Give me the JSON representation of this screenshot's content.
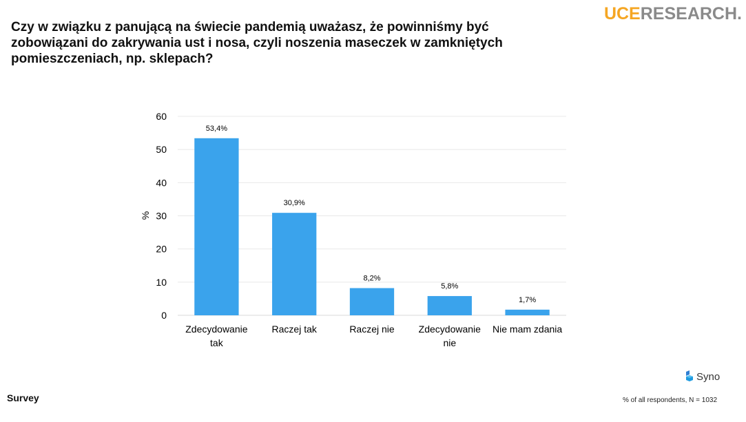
{
  "header": {
    "question": "Czy w związku z panującą na świecie pandemią uważasz, że powinniśmy być zobowiązani do zakrywania ust i nosa, czyli noszenia maseczek w zamkniętych pomieszczeniach, np. sklepach?",
    "logo_part1": "UCE",
    "logo_part2": "RESEARCH."
  },
  "footer": {
    "left_label": "Survey",
    "note": "% of all respondents, N = 1032",
    "brand": "Syno"
  },
  "colors": {
    "bar": "#3aa3ec",
    "accent": "#f5a623",
    "grey": "#8a8a8a"
  },
  "chart_data": {
    "type": "bar",
    "title": "",
    "xlabel": "",
    "ylabel": "%",
    "ylim": [
      0,
      60
    ],
    "yticks": [
      0,
      10,
      20,
      30,
      40,
      50,
      60
    ],
    "grid": true,
    "categories": [
      [
        "Zdecydowanie",
        "tak"
      ],
      [
        "Raczej tak"
      ],
      [
        "Raczej nie"
      ],
      [
        "Zdecydowanie",
        "nie"
      ],
      [
        "Nie mam zdania"
      ]
    ],
    "values": [
      53.4,
      30.9,
      8.2,
      5.8,
      1.7
    ],
    "data_labels": [
      "53,4%",
      "30,9%",
      "8,2%",
      "5,8%",
      "1,7%"
    ]
  }
}
